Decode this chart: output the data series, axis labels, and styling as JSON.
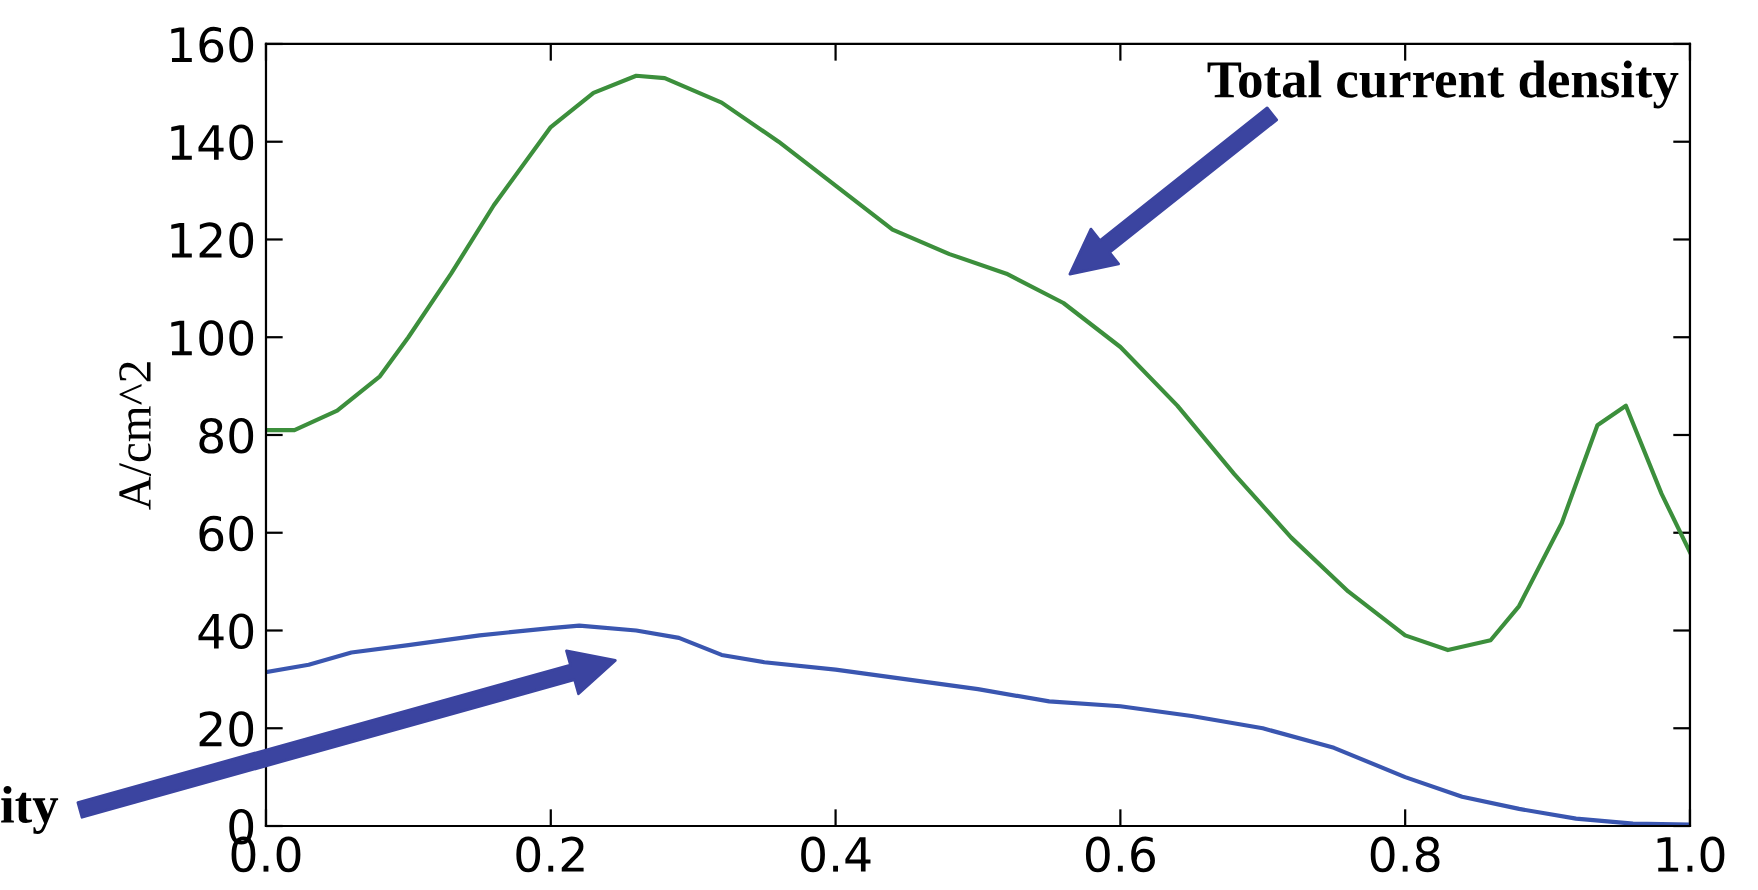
{
  "chart_data": {
    "type": "line",
    "ylabel": "A/cm^2",
    "xlim": [
      0,
      1
    ],
    "xticks": [
      {
        "value": 0,
        "label": "0.0"
      },
      0.2,
      0.4,
      0.6,
      0.8,
      {
        "value": 1,
        "label": "1.0"
      }
    ],
    "ylim": [
      0,
      160
    ],
    "yticks": [
      0,
      20,
      40,
      60,
      80,
      100,
      120,
      140,
      160
    ],
    "grid": false,
    "legend": false,
    "marker": "none",
    "line_style": "solid",
    "series": [
      {
        "color": "#3c8f3c",
        "x": [
          0,
          0.02,
          0.05,
          0.08,
          0.1,
          0.13,
          0.16,
          0.2,
          0.23,
          0.26,
          0.28,
          0.32,
          0.36,
          0.4,
          0.44,
          0.48,
          0.52,
          0.56,
          0.6,
          0.64,
          0.68,
          0.72,
          0.76,
          0.8,
          0.83,
          0.86,
          0.88,
          0.91,
          0.935,
          0.955,
          0.98,
          1.0
        ],
        "values": [
          81,
          81,
          85,
          92,
          100,
          113,
          127,
          143,
          150,
          153.5,
          153,
          148,
          140,
          131,
          122,
          117,
          113,
          107,
          98,
          86,
          72,
          59,
          48,
          39,
          36,
          38,
          45,
          62,
          82,
          86,
          68,
          56
        ]
      },
      {
        "color": "#3a56b0",
        "x": [
          0,
          0.03,
          0.06,
          0.1,
          0.15,
          0.2,
          0.22,
          0.26,
          0.29,
          0.32,
          0.35,
          0.4,
          0.45,
          0.5,
          0.55,
          0.6,
          0.65,
          0.7,
          0.75,
          0.8,
          0.84,
          0.88,
          0.92,
          0.96,
          1.0
        ],
        "values": [
          31.5,
          33,
          35.5,
          37,
          39,
          40.5,
          41,
          40,
          38.5,
          35,
          33.5,
          32,
          30,
          28,
          25.5,
          24.5,
          22.5,
          20,
          16,
          10,
          6,
          3.5,
          1.5,
          0.5,
          0.3
        ]
      }
    ],
    "annotations": [
      "Total current density",
      "ity"
    ]
  }
}
